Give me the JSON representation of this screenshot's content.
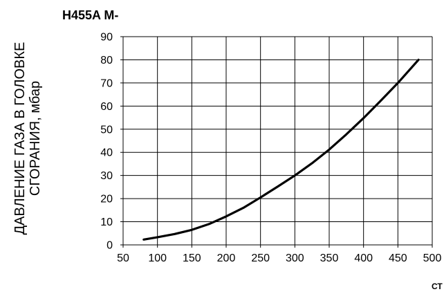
{
  "chart_data": {
    "type": "line",
    "title": "H455A  M-",
    "ylabel_line1": "ДАВЛЕНИЕ ГАЗА В ГОЛОВКЕ",
    "ylabel_line2": "СГОРАНИЯ, мбар",
    "xlabel": "",
    "xlim": [
      50,
      500
    ],
    "ylim": [
      0,
      90
    ],
    "xticks": [
      50,
      100,
      150,
      200,
      250,
      300,
      350,
      400,
      450,
      500
    ],
    "yticks": [
      0,
      10,
      20,
      30,
      40,
      50,
      60,
      70,
      80,
      90
    ],
    "grid": true,
    "series": [
      {
        "x": [
          80,
          100,
          125,
          150,
          175,
          200,
          225,
          250,
          275,
          300,
          325,
          350,
          375,
          400,
          425,
          450,
          480
        ],
        "y": [
          2.3,
          3.3,
          4.7,
          6.5,
          9.0,
          12.3,
          16.0,
          20.5,
          25.2,
          30.0,
          35.3,
          41.2,
          47.8,
          54.8,
          62.3,
          70.0,
          80.0
        ]
      }
    ]
  },
  "footer_text": "СТ"
}
